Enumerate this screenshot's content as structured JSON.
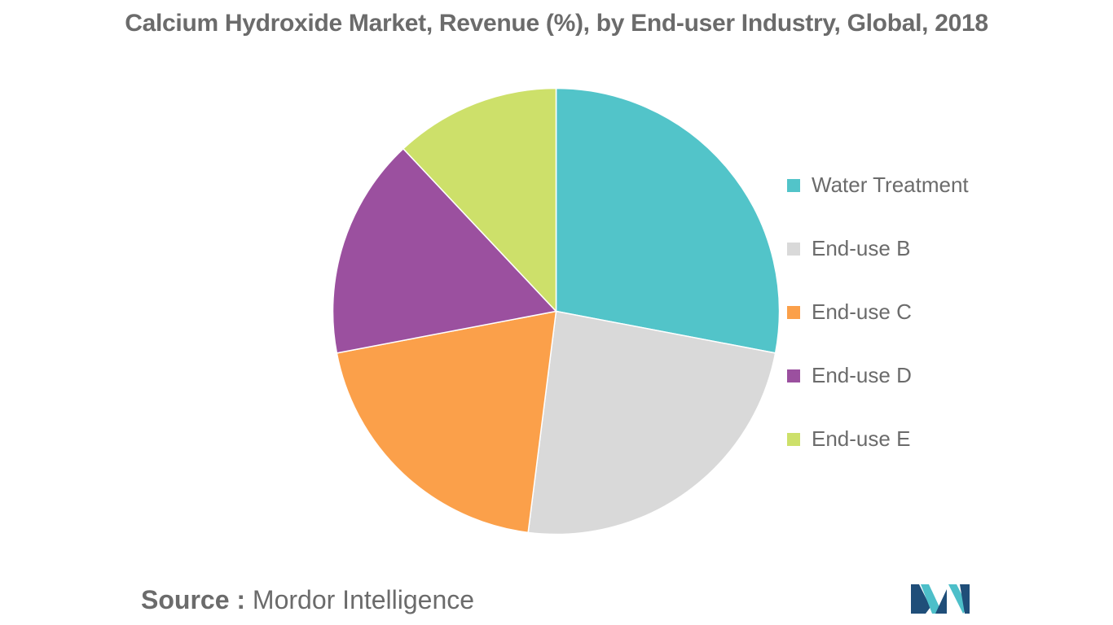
{
  "title": "Calcium Hydroxide Market, Revenue (%), by End-user Industry, Global, 2018",
  "source": {
    "label": "Source :",
    "value": "Mordor Intelligence"
  },
  "colors": {
    "water_treatment": "#52C4C9",
    "end_use_b": "#D9D9D9",
    "end_use_c": "#FBA04A",
    "end_use_d": "#9B509F",
    "end_use_e": "#CDE06A",
    "text": "#6B6B6B",
    "logo_dark": "#1F4E79",
    "logo_teal": "#4DBFC9"
  },
  "logo": {
    "icon": "mordor-intelligence-logo"
  },
  "chart_data": {
    "type": "pie",
    "title": "Calcium Hydroxide Market, Revenue (%), by End-user Industry, Global, 2018",
    "start_angle_deg": 0,
    "direction": "clockwise",
    "legend_position": "right",
    "slices": [
      {
        "label": "Water Treatment",
        "value": 28,
        "color": "#52C4C9"
      },
      {
        "label": "End-use B",
        "value": 24,
        "color": "#D9D9D9"
      },
      {
        "label": "End-use C",
        "value": 20,
        "color": "#FBA04A"
      },
      {
        "label": "End-use D",
        "value": 16,
        "color": "#9B509F"
      },
      {
        "label": "End-use E",
        "value": 12,
        "color": "#CDE06A"
      }
    ]
  }
}
